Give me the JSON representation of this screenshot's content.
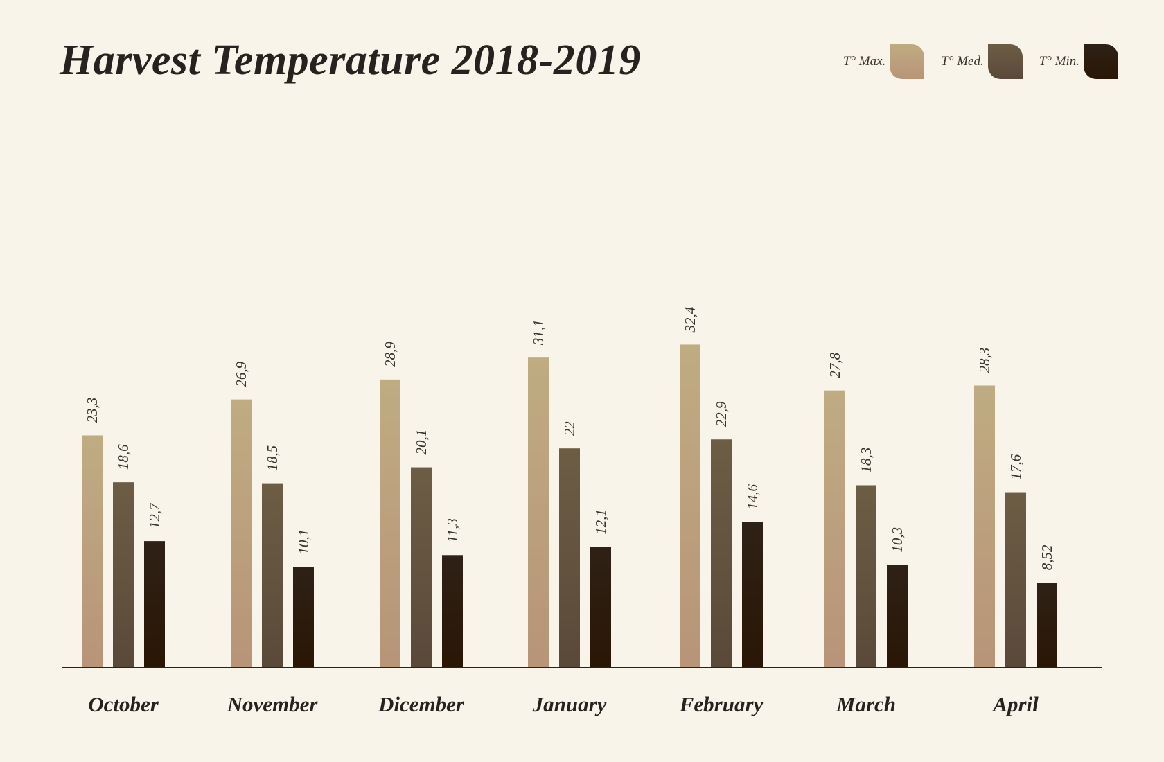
{
  "chart_data": {
    "type": "bar",
    "title": "Harvest Temperature 2018-2019",
    "categories": [
      "October",
      "November",
      "Dicember",
      "January",
      "February",
      "March",
      "April"
    ],
    "series": [
      {
        "name": "T° Max.",
        "values": [
          23.3,
          26.9,
          28.9,
          31.1,
          32.4,
          27.8,
          28.3
        ],
        "labels": [
          "23,3",
          "26,9",
          "28,9",
          "31,1",
          "32,4",
          "27,8",
          "28,3"
        ],
        "color_top": "#bfac82",
        "color_bottom": "#b89478"
      },
      {
        "name": "T° Med.",
        "values": [
          18.6,
          18.5,
          20.1,
          22,
          22.9,
          18.3,
          17.6
        ],
        "labels": [
          "18,6",
          "18,5",
          "20,1",
          "22",
          "22,9",
          "18,3",
          "17,6"
        ],
        "color_top": "#6d5d45",
        "color_bottom": "#5a4939"
      },
      {
        "name": "T° Min.",
        "values": [
          12.7,
          10.1,
          11.3,
          12.1,
          14.6,
          10.3,
          8.52
        ],
        "labels": [
          "12,7",
          "10,1",
          "11,3",
          "12,1",
          "14,6",
          "10,3",
          "8,52"
        ],
        "color_top": "#2e2116",
        "color_bottom": "#2a1605"
      }
    ],
    "ylim": [
      0,
      34
    ],
    "xlabel": "",
    "ylabel": "",
    "grid": false,
    "legend_position": "top-right"
  }
}
